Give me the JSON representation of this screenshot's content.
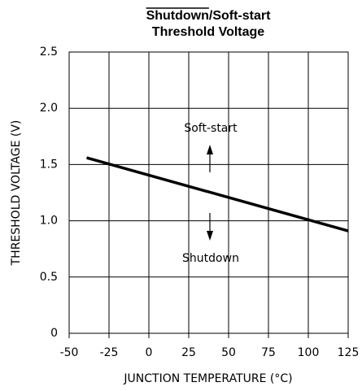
{
  "chart_data": {
    "type": "line",
    "title": "Shutdown/Soft-start",
    "subtitle": "Threshold Voltage",
    "x_label": "JUNCTION TEMPERATURE (°C)",
    "y_label": "THRESHOLD VOLTAGE (V)",
    "x": [
      -39,
      125
    ],
    "series": [
      {
        "name": "Threshold",
        "color": "#000000",
        "values": [
          1.56,
          0.91
        ]
      }
    ],
    "xlim": [
      -50,
      125
    ],
    "xticks": [
      -50,
      -25,
      0,
      25,
      50,
      75,
      100,
      125
    ],
    "ylim": [
      0,
      2.5
    ],
    "yticks": [
      0,
      0.5,
      {
        "value": 1,
        "label": "1.0"
      },
      1.5,
      {
        "value": 2,
        "label": "2.0"
      },
      2.5
    ],
    "grid": true,
    "annotations": [
      "Soft-start",
      "Shutdown"
    ]
  }
}
